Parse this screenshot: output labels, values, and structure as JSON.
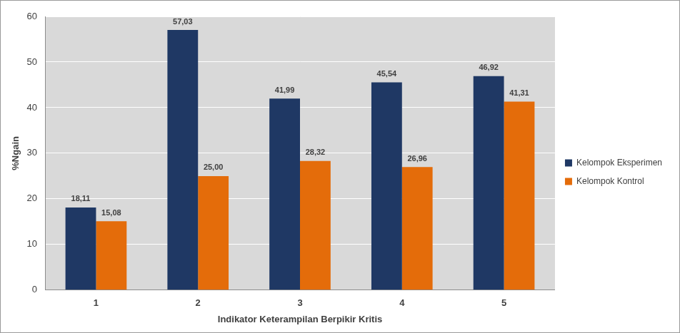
{
  "chart_data": {
    "type": "bar",
    "x_label": "Indikator Keterampilan Berpikir Kritis",
    "y_label": "%Ngain",
    "categories": [
      "1",
      "2",
      "3",
      "4",
      "5"
    ],
    "series": [
      {
        "name": "Kelompok Eksperimen",
        "color": "#1f3864",
        "values": [
          18.11,
          57.03,
          41.99,
          45.54,
          46.92
        ],
        "value_labels": [
          "18,11",
          "57,03",
          "41,99",
          "45,54",
          "46,92"
        ]
      },
      {
        "name": "Kelompok Kontrol",
        "color": "#e46c0a",
        "values": [
          15.08,
          25.0,
          28.32,
          26.96,
          41.31
        ],
        "value_labels": [
          "15,08",
          "25,00",
          "28,32",
          "26,96",
          "41,31"
        ]
      }
    ],
    "ylim": [
      0,
      60
    ],
    "yticks": [
      0,
      10,
      20,
      30,
      40,
      50,
      60
    ],
    "grid": true,
    "legend": "right",
    "data_labels": true
  }
}
